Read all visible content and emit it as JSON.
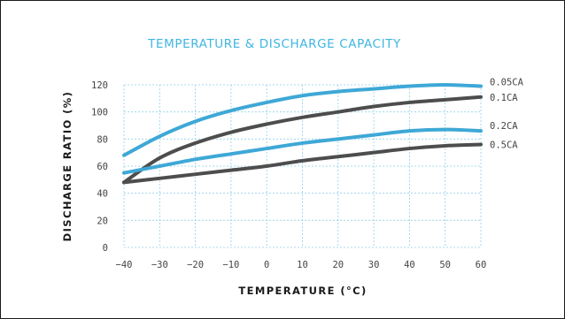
{
  "chart_data": {
    "type": "line",
    "title": "TEMPERATURE & DISCHARGE CAPACITY",
    "xlabel": "TEMPERATURE (°C)",
    "ylabel": "DISCHARGE RATIO (%)",
    "xlim": [
      -40,
      60
    ],
    "ylim": [
      0,
      120
    ],
    "x_ticks": [
      -40,
      -30,
      -20,
      -10,
      0,
      10,
      20,
      30,
      40,
      50,
      60
    ],
    "y_ticks": [
      0,
      20,
      40,
      60,
      80,
      100,
      120
    ],
    "x_tick_labels": [
      "−40",
      "−30",
      "−20",
      "−10",
      "0",
      "10",
      "20",
      "30",
      "40",
      "50",
      "60"
    ],
    "y_tick_labels": [
      "0",
      "20",
      "40",
      "60",
      "80",
      "100",
      "120"
    ],
    "grid": true,
    "legend": "right-end-labels",
    "x": [
      -40,
      -30,
      -20,
      -10,
      0,
      10,
      20,
      30,
      40,
      50,
      60
    ],
    "series": [
      {
        "name": "0.05CA",
        "color": "#3ea8d6",
        "values": [
          68,
          82,
          93,
          101,
          107,
          112,
          115,
          117,
          119,
          120,
          119
        ]
      },
      {
        "name": "0.1CA",
        "color": "#4d4d4d",
        "values": [
          48,
          66,
          77,
          85,
          91,
          96,
          100,
          104,
          107,
          109,
          111
        ]
      },
      {
        "name": "0.2CA",
        "color": "#3ea8d6",
        "values": [
          55,
          60,
          65,
          69,
          73,
          77,
          80,
          83,
          86,
          87,
          86
        ]
      },
      {
        "name": "0.5CA",
        "color": "#4d4d4d",
        "values": [
          48,
          51,
          54,
          57,
          60,
          64,
          67,
          70,
          73,
          75,
          76
        ]
      }
    ]
  }
}
